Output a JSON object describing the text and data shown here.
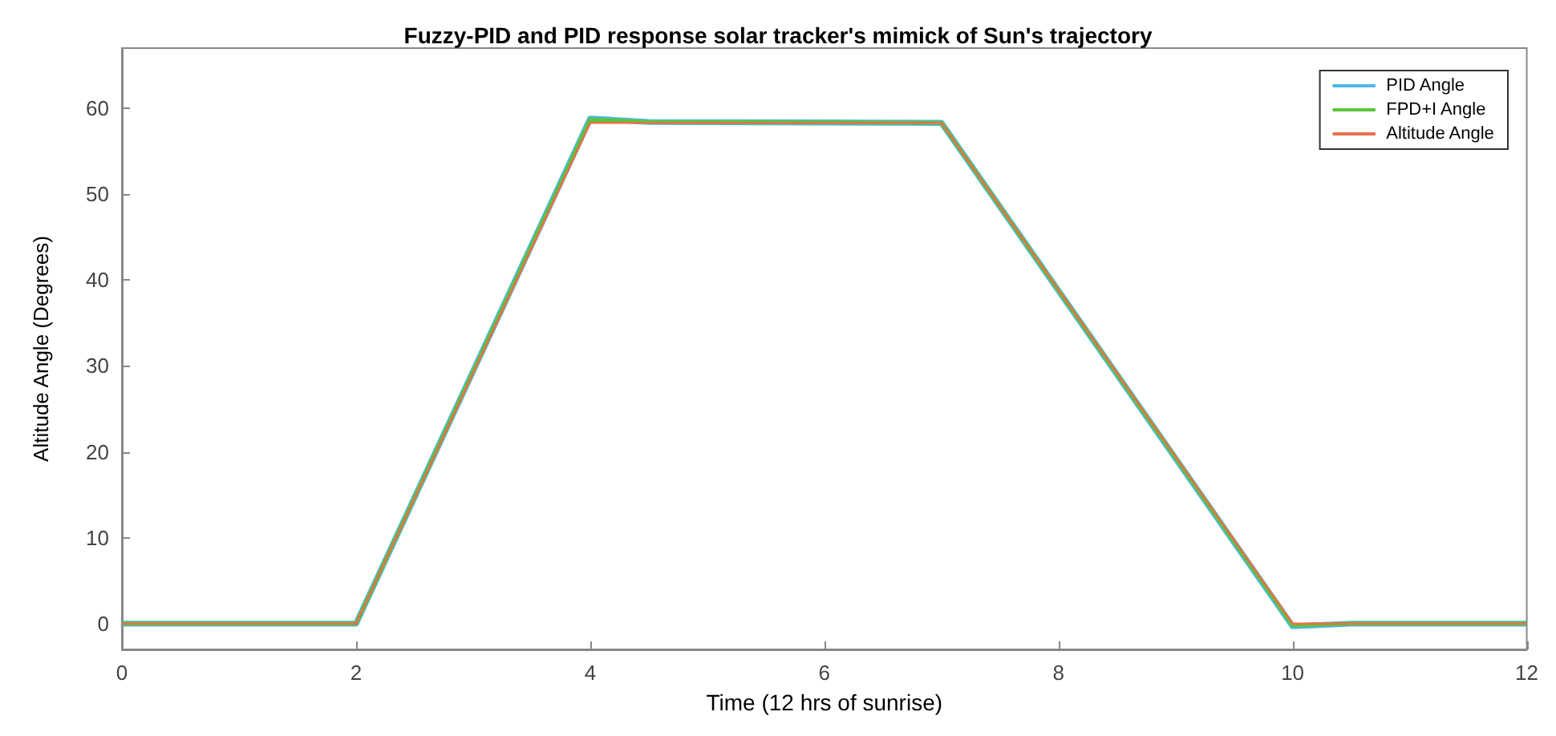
{
  "chart_data": {
    "type": "line",
    "title": "Fuzzy-PID and PID response solar tracker's mimick of Sun's trajectory",
    "xlabel": "Time (12 hrs of sunrise)",
    "ylabel": "Altitude Angle (Degrees)",
    "xlim": [
      0,
      12
    ],
    "xticks": [
      0,
      2,
      4,
      6,
      8,
      10,
      12
    ],
    "ylim": [
      -3,
      67
    ],
    "yticks": [
      0,
      10,
      20,
      30,
      40,
      50,
      60
    ],
    "grid": false,
    "legend": "top right",
    "line_style": "solid",
    "marker": "none",
    "series": [
      {
        "name": "PID Angle",
        "color": "#4db8e8",
        "x": [
          0,
          2,
          4,
          4.5,
          7,
          10,
          10.5,
          12
        ],
        "values": [
          0,
          0,
          58.8,
          58.4,
          58.3,
          -0.3,
          0,
          0
        ]
      },
      {
        "name": "FPD+I Angle",
        "color": "#5cc43c",
        "x": [
          0,
          2,
          4,
          4.5,
          7,
          10,
          10.5,
          12
        ],
        "values": [
          0,
          0,
          58.7,
          58.4,
          58.3,
          -0.2,
          0,
          0
        ]
      },
      {
        "name": "Altitude Angle",
        "color": "#e8704a",
        "x": [
          0,
          2,
          4,
          7,
          10,
          12
        ],
        "values": [
          0,
          0,
          58.3,
          58.3,
          0,
          0
        ]
      }
    ]
  }
}
